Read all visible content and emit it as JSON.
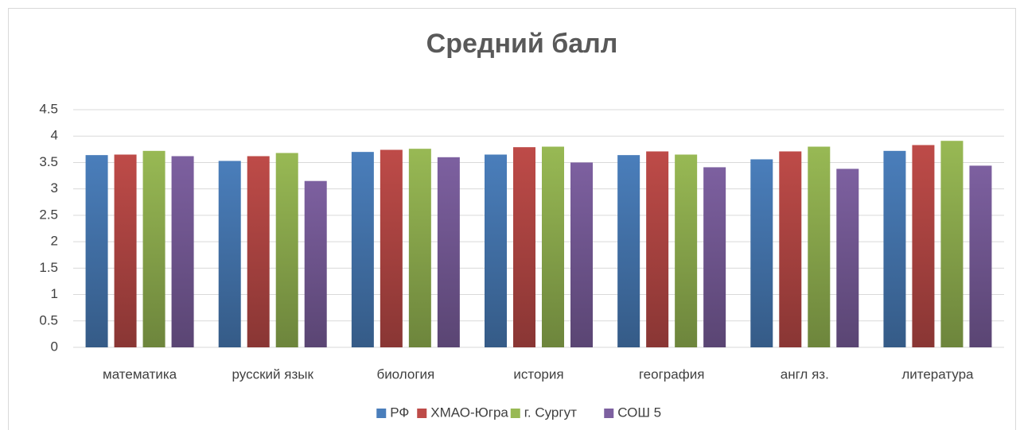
{
  "chart_data": {
    "type": "bar",
    "title": "Средний балл",
    "categories": [
      "математика",
      "русский язык",
      "биология",
      "история",
      "география",
      "англ яз.",
      "литература"
    ],
    "series": [
      {
        "name": "РФ",
        "color": "#4a7ebb",
        "values": [
          3.64,
          3.53,
          3.7,
          3.65,
          3.64,
          3.56,
          3.72
        ]
      },
      {
        "name": "ХМАО-Югра",
        "color": "#be4b48",
        "values": [
          3.65,
          3.62,
          3.74,
          3.79,
          3.71,
          3.71,
          3.83
        ]
      },
      {
        "name": "г. Сургут",
        "color": "#98b954",
        "values": [
          3.72,
          3.68,
          3.76,
          3.8,
          3.65,
          3.8,
          3.91
        ]
      },
      {
        "name": "СОШ 5",
        "color": "#7d60a0",
        "values": [
          3.62,
          3.15,
          3.6,
          3.5,
          3.41,
          3.38,
          3.44
        ]
      }
    ],
    "ylim": [
      0,
      4.5
    ],
    "yticks": [
      0,
      0.5,
      1,
      1.5,
      2,
      2.5,
      3,
      3.5,
      4,
      4.5
    ],
    "grid": true,
    "legend": "bottom"
  }
}
